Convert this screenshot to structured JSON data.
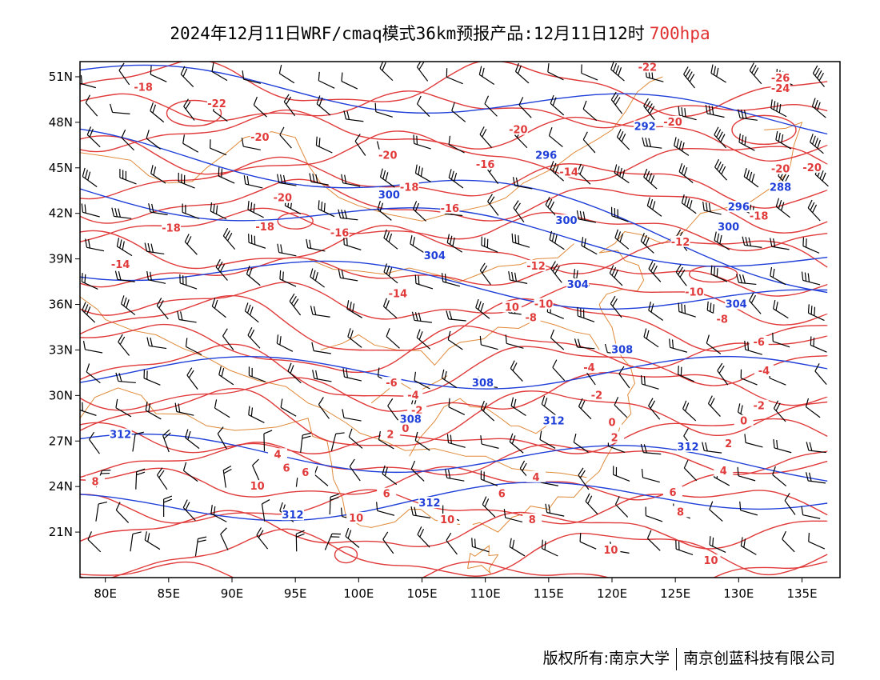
{
  "title": {
    "main": "2024年12月11日WRF/cmaq模式36km预报产品:12月11日12时",
    "level": "700hpa"
  },
  "map": {
    "lon_range": [
      78,
      138
    ],
    "lat_range": [
      18,
      52
    ],
    "lon_ticks": [
      "80E",
      "85E",
      "90E",
      "95E",
      "100E",
      "105E",
      "110E",
      "115E",
      "120E",
      "125E",
      "130E",
      "135E"
    ],
    "lat_ticks": [
      "51N",
      "48N",
      "45N",
      "42N",
      "39N",
      "36N",
      "33N",
      "30N",
      "27N",
      "24N",
      "21N"
    ],
    "colors": {
      "temperature": "#e03a3a",
      "geopotential": "#1f3fd8",
      "boundaries": "#e08a3a",
      "wind": "#000000"
    },
    "temperature_contour_labels": [
      {
        "value": "-18",
        "lon": 83.0,
        "lat": 50.3
      },
      {
        "value": "-22",
        "lon": 88.8,
        "lat": 49.2
      },
      {
        "value": "-20",
        "lon": 92.2,
        "lat": 47.0
      },
      {
        "value": "-20",
        "lon": 102.3,
        "lat": 45.8
      },
      {
        "value": "-20",
        "lon": 112.6,
        "lat": 47.5
      },
      {
        "value": "-22",
        "lon": 122.8,
        "lat": 51.6
      },
      {
        "value": "-20",
        "lon": 124.8,
        "lat": 48.0
      },
      {
        "value": "-24",
        "lon": 133.3,
        "lat": 50.2
      },
      {
        "value": "-26",
        "lon": 133.3,
        "lat": 50.9
      },
      {
        "value": "-18",
        "lon": 104.0,
        "lat": 43.7
      },
      {
        "value": "-20",
        "lon": 94.0,
        "lat": 43.0
      },
      {
        "value": "-16",
        "lon": 110.0,
        "lat": 45.2
      },
      {
        "value": "-14",
        "lon": 116.6,
        "lat": 44.7
      },
      {
        "value": "-16",
        "lon": 107.2,
        "lat": 42.3
      },
      {
        "value": "-18",
        "lon": 85.2,
        "lat": 41.0
      },
      {
        "value": "-18",
        "lon": 92.6,
        "lat": 41.1
      },
      {
        "value": "-16",
        "lon": 98.5,
        "lat": 40.7
      },
      {
        "value": "-14",
        "lon": 81.2,
        "lat": 38.6
      },
      {
        "value": "-14",
        "lon": 103.1,
        "lat": 36.7
      },
      {
        "value": "-12",
        "lon": 114.0,
        "lat": 38.5
      },
      {
        "value": "-12",
        "lon": 125.4,
        "lat": 40.1
      },
      {
        "value": "-18",
        "lon": 131.6,
        "lat": 41.8
      },
      {
        "value": "-20",
        "lon": 133.3,
        "lat": 44.9
      },
      {
        "value": "-20",
        "lon": 135.8,
        "lat": 45.0
      },
      {
        "value": "-10",
        "lon": 114.6,
        "lat": 36.0
      },
      {
        "value": "-10",
        "lon": 126.5,
        "lat": 36.8
      },
      {
        "value": "-8",
        "lon": 113.6,
        "lat": 35.1
      },
      {
        "value": "-8",
        "lon": 128.7,
        "lat": 35.0
      },
      {
        "value": "-6",
        "lon": 131.6,
        "lat": 33.5
      },
      {
        "value": "-6",
        "lon": 102.6,
        "lat": 30.8
      },
      {
        "value": "-4",
        "lon": 104.3,
        "lat": 30.0
      },
      {
        "value": "-4",
        "lon": 118.2,
        "lat": 31.8
      },
      {
        "value": "-4",
        "lon": 132.0,
        "lat": 31.6
      },
      {
        "value": "-2",
        "lon": 104.6,
        "lat": 29.0
      },
      {
        "value": "-2",
        "lon": 118.8,
        "lat": 30.0
      },
      {
        "value": "-2",
        "lon": 131.6,
        "lat": 29.3
      },
      {
        "value": "0",
        "lon": 103.7,
        "lat": 27.8
      },
      {
        "value": "0",
        "lon": 120.0,
        "lat": 28.2
      },
      {
        "value": "0",
        "lon": 130.4,
        "lat": 28.3
      },
      {
        "value": "2",
        "lon": 102.5,
        "lat": 27.4
      },
      {
        "value": "2",
        "lon": 120.2,
        "lat": 27.2
      },
      {
        "value": "2",
        "lon": 129.2,
        "lat": 26.8
      },
      {
        "value": "4",
        "lon": 93.6,
        "lat": 26.1
      },
      {
        "value": "4",
        "lon": 114.0,
        "lat": 24.6
      },
      {
        "value": "4",
        "lon": 128.8,
        "lat": 25.0
      },
      {
        "value": "6",
        "lon": 94.3,
        "lat": 25.2
      },
      {
        "value": "6",
        "lon": 95.8,
        "lat": 24.9
      },
      {
        "value": "6",
        "lon": 102.2,
        "lat": 23.5
      },
      {
        "value": "6",
        "lon": 111.3,
        "lat": 23.5
      },
      {
        "value": "6",
        "lon": 124.8,
        "lat": 23.6
      },
      {
        "value": "8",
        "lon": 79.2,
        "lat": 24.3
      },
      {
        "value": "8",
        "lon": 113.7,
        "lat": 21.8
      },
      {
        "value": "8",
        "lon": 125.4,
        "lat": 22.3
      },
      {
        "value": "10",
        "lon": 92.0,
        "lat": 24.0
      },
      {
        "value": "10",
        "lon": 99.8,
        "lat": 21.9
      },
      {
        "value": "10",
        "lon": 107.0,
        "lat": 21.8
      },
      {
        "value": "10",
        "lon": 119.9,
        "lat": 19.8
      },
      {
        "value": "10",
        "lon": 127.8,
        "lat": 19.1
      },
      {
        "value": "10",
        "lon": 112.1,
        "lat": 35.8
      }
    ],
    "geopotential_contour_labels": [
      {
        "value": "292",
        "lon": 122.6,
        "lat": 47.7
      },
      {
        "value": "296",
        "lon": 114.8,
        "lat": 45.8
      },
      {
        "value": "288",
        "lon": 133.3,
        "lat": 43.7
      },
      {
        "value": "296",
        "lon": 130.0,
        "lat": 42.4
      },
      {
        "value": "300",
        "lon": 102.4,
        "lat": 43.2
      },
      {
        "value": "300",
        "lon": 116.4,
        "lat": 41.5
      },
      {
        "value": "300",
        "lon": 129.2,
        "lat": 41.1
      },
      {
        "value": "304",
        "lon": 106.0,
        "lat": 39.2
      },
      {
        "value": "304",
        "lon": 117.3,
        "lat": 37.3
      },
      {
        "value": "304",
        "lon": 129.8,
        "lat": 36.0
      },
      {
        "value": "308",
        "lon": 120.8,
        "lat": 33.0
      },
      {
        "value": "308",
        "lon": 109.8,
        "lat": 30.8
      },
      {
        "value": "308",
        "lon": 104.1,
        "lat": 28.4
      },
      {
        "value": "312",
        "lon": 81.2,
        "lat": 27.4
      },
      {
        "value": "312",
        "lon": 115.4,
        "lat": 28.3
      },
      {
        "value": "312",
        "lon": 126.0,
        "lat": 26.6
      },
      {
        "value": "312",
        "lon": 105.6,
        "lat": 22.9
      },
      {
        "value": "312",
        "lon": 94.8,
        "lat": 22.1
      }
    ]
  },
  "footer": {
    "copyright": "版权所有:南京大学",
    "company": "南京创蓝科技有限公司"
  }
}
